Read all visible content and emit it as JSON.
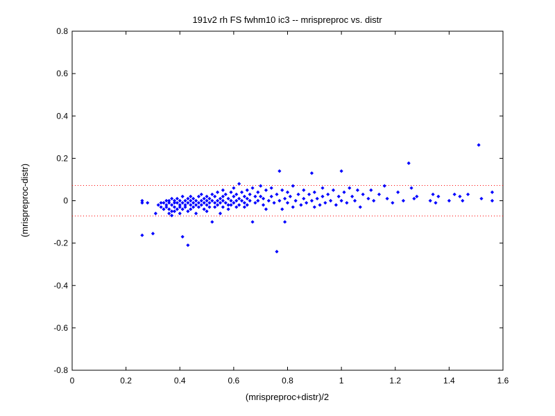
{
  "chart_data": {
    "type": "scatter",
    "title": "191v2 rh FS fwhm10 ic3 -- mrispreproc vs. distr",
    "xlabel": "(mrispreproc+distr)/2",
    "ylabel": "(mrispreproc-distr)",
    "xlim": [
      0,
      1.6
    ],
    "ylim": [
      -0.8,
      0.8
    ],
    "xticks": [
      0,
      0.2,
      0.4,
      0.6,
      0.8,
      1,
      1.2,
      1.4,
      1.6
    ],
    "yticks": [
      -0.8,
      -0.6,
      -0.4,
      -0.2,
      0,
      0.2,
      0.4,
      0.6,
      0.8
    ],
    "xtick_labels": [
      "0",
      "0.2",
      "0.4",
      "0.6",
      "0.8",
      "1",
      "1.2",
      "1.4",
      "1.6"
    ],
    "ytick_labels": [
      "-0.8",
      "-0.6",
      "-0.4",
      "-0.2",
      "0",
      "0.2",
      "0.4",
      "0.6",
      "0.8"
    ],
    "grid": false,
    "legend": "none",
    "marker_color": "#0000ff",
    "limit_line_color": "#ff0000",
    "limit_lines": [
      0.072,
      -0.072
    ],
    "series": [
      {
        "points": [
          [
            0.26,
            -0.01
          ],
          [
            0.26,
            0.0
          ],
          [
            0.26,
            -0.163
          ],
          [
            0.28,
            -0.01
          ],
          [
            0.3,
            -0.155
          ],
          [
            0.31,
            -0.06
          ],
          [
            0.32,
            -0.02
          ],
          [
            0.33,
            -0.01
          ],
          [
            0.33,
            -0.03
          ],
          [
            0.34,
            -0.01
          ],
          [
            0.34,
            -0.04
          ],
          [
            0.35,
            0.0
          ],
          [
            0.35,
            -0.02
          ],
          [
            0.35,
            -0.03
          ],
          [
            0.36,
            0.0
          ],
          [
            0.36,
            -0.01
          ],
          [
            0.36,
            -0.04
          ],
          [
            0.36,
            -0.06
          ],
          [
            0.37,
            0.01
          ],
          [
            0.37,
            -0.02
          ],
          [
            0.37,
            -0.05
          ],
          [
            0.37,
            -0.07
          ],
          [
            0.38,
            0.0
          ],
          [
            0.38,
            -0.01
          ],
          [
            0.38,
            -0.03
          ],
          [
            0.38,
            -0.05
          ],
          [
            0.39,
            0.01
          ],
          [
            0.39,
            -0.01
          ],
          [
            0.39,
            -0.04
          ],
          [
            0.4,
            0.0
          ],
          [
            0.4,
            -0.02
          ],
          [
            0.4,
            -0.03
          ],
          [
            0.4,
            -0.06
          ],
          [
            0.41,
            0.02
          ],
          [
            0.41,
            -0.01
          ],
          [
            0.41,
            -0.04
          ],
          [
            0.41,
            -0.17
          ],
          [
            0.42,
            0.0
          ],
          [
            0.42,
            -0.02
          ],
          [
            0.42,
            -0.03
          ],
          [
            0.43,
            0.01
          ],
          [
            0.43,
            -0.01
          ],
          [
            0.43,
            -0.05
          ],
          [
            0.43,
            -0.21
          ],
          [
            0.44,
            0.02
          ],
          [
            0.44,
            0.0
          ],
          [
            0.44,
            -0.02
          ],
          [
            0.44,
            -0.04
          ],
          [
            0.45,
            0.01
          ],
          [
            0.45,
            -0.01
          ],
          [
            0.45,
            -0.03
          ],
          [
            0.46,
            0.0
          ],
          [
            0.46,
            -0.02
          ],
          [
            0.46,
            -0.06
          ],
          [
            0.47,
            0.02
          ],
          [
            0.47,
            -0.01
          ],
          [
            0.47,
            -0.03
          ],
          [
            0.48,
            0.03
          ],
          [
            0.48,
            0.0
          ],
          [
            0.48,
            -0.02
          ],
          [
            0.49,
            0.01
          ],
          [
            0.49,
            -0.01
          ],
          [
            0.49,
            -0.04
          ],
          [
            0.5,
            0.02
          ],
          [
            0.5,
            0.0
          ],
          [
            0.5,
            -0.02
          ],
          [
            0.5,
            -0.05
          ],
          [
            0.51,
            0.01
          ],
          [
            0.51,
            -0.01
          ],
          [
            0.51,
            -0.03
          ],
          [
            0.52,
            0.03
          ],
          [
            0.52,
            0.0
          ],
          [
            0.52,
            -0.1
          ],
          [
            0.53,
            0.02
          ],
          [
            0.53,
            -0.01
          ],
          [
            0.53,
            -0.03
          ],
          [
            0.54,
            0.04
          ],
          [
            0.54,
            0.0
          ],
          [
            0.54,
            -0.02
          ],
          [
            0.55,
            0.01
          ],
          [
            0.55,
            -0.01
          ],
          [
            0.55,
            -0.06
          ],
          [
            0.56,
            0.05
          ],
          [
            0.56,
            0.02
          ],
          [
            0.56,
            0.0
          ],
          [
            0.56,
            -0.03
          ],
          [
            0.57,
            0.03
          ],
          [
            0.57,
            -0.01
          ],
          [
            0.58,
            0.01
          ],
          [
            0.58,
            -0.02
          ],
          [
            0.58,
            -0.04
          ],
          [
            0.59,
            0.04
          ],
          [
            0.59,
            0.0
          ],
          [
            0.59,
            -0.02
          ],
          [
            0.6,
            0.06
          ],
          [
            0.6,
            0.02
          ],
          [
            0.6,
            -0.01
          ],
          [
            0.61,
            0.03
          ],
          [
            0.61,
            0.0
          ],
          [
            0.61,
            -0.03
          ],
          [
            0.62,
            0.08
          ],
          [
            0.62,
            0.01
          ],
          [
            0.62,
            -0.02
          ],
          [
            0.63,
            0.04
          ],
          [
            0.63,
            0.0
          ],
          [
            0.64,
            0.02
          ],
          [
            0.64,
            -0.01
          ],
          [
            0.64,
            -0.03
          ],
          [
            0.65,
            0.05
          ],
          [
            0.65,
            0.01
          ],
          [
            0.65,
            -0.02
          ],
          [
            0.66,
            0.03
          ],
          [
            0.66,
            0.0
          ],
          [
            0.67,
            0.06
          ],
          [
            0.67,
            -0.1
          ],
          [
            0.68,
            0.02
          ],
          [
            0.68,
            -0.01
          ],
          [
            0.69,
            0.04
          ],
          [
            0.69,
            0.0
          ],
          [
            0.7,
            0.07
          ],
          [
            0.7,
            0.02
          ],
          [
            0.71,
            -0.02
          ],
          [
            0.71,
            0.01
          ],
          [
            0.72,
            0.05
          ],
          [
            0.72,
            -0.04
          ],
          [
            0.73,
            0.0
          ],
          [
            0.74,
            0.06
          ],
          [
            0.74,
            0.02
          ],
          [
            0.75,
            -0.01
          ],
          [
            0.76,
            -0.24
          ],
          [
            0.76,
            0.03
          ],
          [
            0.77,
            0.0
          ],
          [
            0.77,
            0.14
          ],
          [
            0.78,
            -0.04
          ],
          [
            0.78,
            0.05
          ],
          [
            0.79,
            0.01
          ],
          [
            0.79,
            -0.1
          ],
          [
            0.8,
            0.04
          ],
          [
            0.8,
            -0.01
          ],
          [
            0.81,
            0.02
          ],
          [
            0.82,
            -0.03
          ],
          [
            0.82,
            0.07
          ],
          [
            0.83,
            0.0
          ],
          [
            0.84,
            0.03
          ],
          [
            0.85,
            -0.02
          ],
          [
            0.86,
            0.05
          ],
          [
            0.86,
            0.01
          ],
          [
            0.87,
            -0.01
          ],
          [
            0.88,
            0.03
          ],
          [
            0.89,
            0.13
          ],
          [
            0.89,
            0.0
          ],
          [
            0.9,
            -0.03
          ],
          [
            0.9,
            0.04
          ],
          [
            0.91,
            0.01
          ],
          [
            0.92,
            -0.02
          ],
          [
            0.93,
            0.06
          ],
          [
            0.93,
            0.02
          ],
          [
            0.94,
            -0.01
          ],
          [
            0.95,
            0.03
          ],
          [
            0.96,
            0.0
          ],
          [
            0.97,
            0.05
          ],
          [
            0.98,
            -0.02
          ],
          [
            0.99,
            0.02
          ],
          [
            1.0,
            0.14
          ],
          [
            1.0,
            0.0
          ],
          [
            1.01,
            0.04
          ],
          [
            1.02,
            -0.01
          ],
          [
            1.03,
            0.06
          ],
          [
            1.04,
            0.02
          ],
          [
            1.05,
            0.0
          ],
          [
            1.06,
            0.05
          ],
          [
            1.07,
            -0.03
          ],
          [
            1.08,
            0.03
          ],
          [
            1.1,
            0.01
          ],
          [
            1.11,
            0.05
          ],
          [
            1.12,
            0.0
          ],
          [
            1.14,
            0.03
          ],
          [
            1.16,
            0.07
          ],
          [
            1.17,
            0.01
          ],
          [
            1.19,
            -0.01
          ],
          [
            1.21,
            0.04
          ],
          [
            1.23,
            0.0
          ],
          [
            1.25,
            0.177
          ],
          [
            1.26,
            0.06
          ],
          [
            1.27,
            0.01
          ],
          [
            1.28,
            0.02
          ],
          [
            1.33,
            0.0
          ],
          [
            1.34,
            0.03
          ],
          [
            1.35,
            -0.01
          ],
          [
            1.36,
            0.02
          ],
          [
            1.4,
            0.0
          ],
          [
            1.42,
            0.03
          ],
          [
            1.44,
            0.02
          ],
          [
            1.45,
            0.0
          ],
          [
            1.47,
            0.03
          ],
          [
            1.51,
            0.263
          ],
          [
            1.52,
            0.01
          ],
          [
            1.56,
            0.04
          ],
          [
            1.56,
            0.0
          ]
        ]
      }
    ]
  }
}
